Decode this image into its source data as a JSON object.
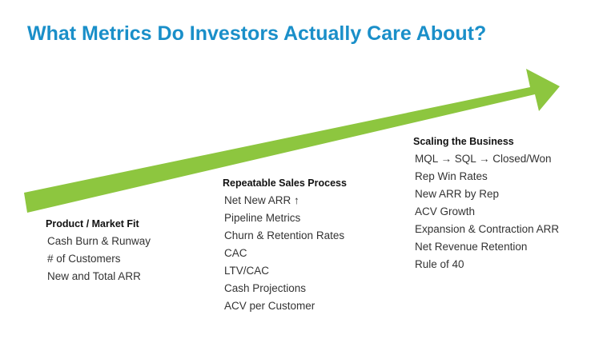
{
  "title": "What Metrics Do Investors Actually Care About?",
  "colors": {
    "title": "#1a8fc9",
    "arrow": "#8dc63f",
    "heading": "#111111",
    "item": "#333333"
  },
  "stages": [
    {
      "heading": "Product / Market Fit",
      "items": [
        "Cash Burn & Runway",
        "# of Customers",
        "New and Total ARR"
      ]
    },
    {
      "heading": "Repeatable Sales Process",
      "items": [
        "Net New ARR ↑",
        "Pipeline Metrics",
        "Churn & Retention Rates",
        "CAC",
        "LTV/CAC",
        "Cash Projections",
        "ACV per Customer"
      ]
    },
    {
      "heading": "Scaling the Business",
      "items": [
        "MQL → SQL → Closed/Won",
        "Rep Win Rates",
        "New ARR by Rep",
        "ACV Growth",
        "Expansion & Contraction ARR",
        "Net Revenue Retention",
        "Rule of 40"
      ]
    }
  ]
}
